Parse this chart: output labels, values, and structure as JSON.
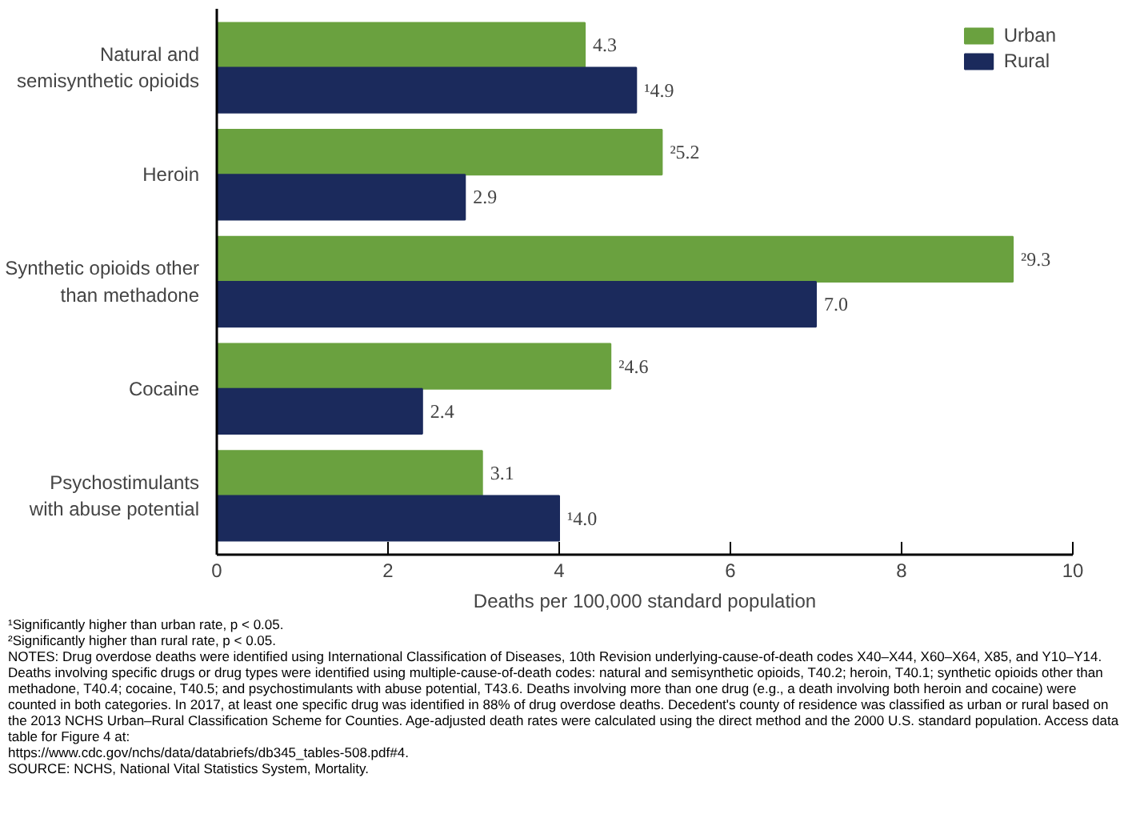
{
  "chart_data": {
    "type": "bar",
    "orientation": "horizontal",
    "categories": [
      "Natural and\nsemisynthetic opioids",
      "Heroin",
      "Synthetic opioids other\nthan methadone",
      "Cocaine",
      "Psychostimulants\nwith abuse potential"
    ],
    "series": [
      {
        "name": "Urban",
        "color": "#6aa13f",
        "values": [
          4.3,
          5.2,
          9.3,
          4.6,
          3.1
        ],
        "value_labels": [
          "4.3",
          "²5.2",
          "²9.3",
          "²4.6",
          "3.1"
        ]
      },
      {
        "name": "Rural",
        "color": "#1b2a5c",
        "values": [
          4.9,
          2.9,
          7.0,
          2.4,
          4.0
        ],
        "value_labels": [
          "¹4.9",
          "2.9",
          "7.0",
          "2.4",
          "¹4.0"
        ]
      }
    ],
    "xlabel": "Deaths per 100,000 standard population",
    "xlim": [
      0,
      10
    ],
    "xticks": [
      0,
      2,
      4,
      6,
      8,
      10
    ],
    "grid": false,
    "legend": "top right",
    "annotations": [
      "¹Significantly higher than urban rate, p < 0.05.",
      "²Significantly higher than rural rate, p < 0.05.",
      "NOTES: Drug overdose deaths were identified using International Classification of Diseases, 10th Revision underlying-cause-of-death codes X40–X44, X60–X64, X85, and Y10–Y14. Deaths involving specific drugs or drug types were identified using multiple-cause-of-death codes: natural and semisynthetic opioids, T40.2; heroin, T40.1; synthetic opioids other than methadone, T40.4; cocaine, T40.5; and psychostimulants with abuse potential, T43.6. Deaths involving more than one drug (e.g., a death involving both heroin and cocaine) were counted in both categories. In 2017, at least one specific drug was identified in 88% of drug overdose deaths. Decedent's county of residence was classified as urban or rural based on the 2013 NCHS Urban–Rural Classification Scheme for Counties. Age-adjusted death rates were calculated using the direct method and the 2000 U.S. standard population. Access data table for Figure 4 at:",
      "https://www.cdc.gov/nchs/data/databriefs/db345_tables-508.pdf#4.",
      "SOURCE: NCHS, National Vital Statistics System, Mortality."
    ]
  }
}
